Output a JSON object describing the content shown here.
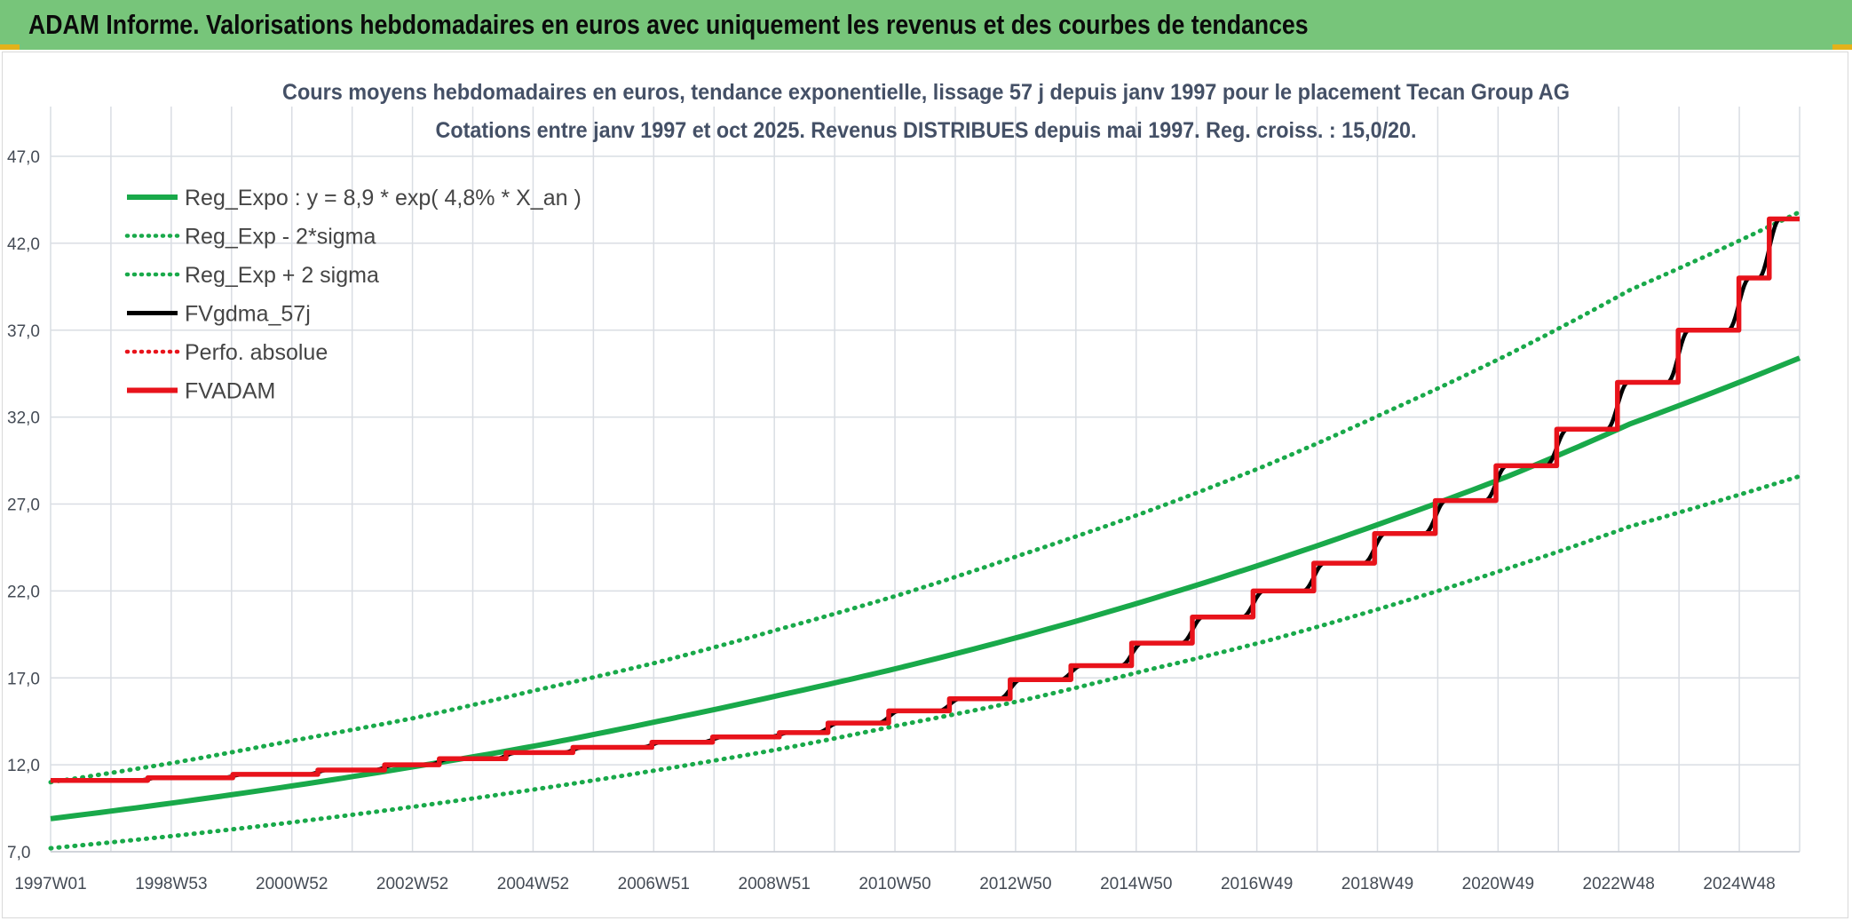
{
  "header": {
    "title": "ADAM Informe. Valorisations hebdomadaires en euros avec uniquement les revenus et des courbes de tendances"
  },
  "colors": {
    "header_bg": "#77c57a",
    "trend": "#19a94a",
    "fvgdma": "#000000",
    "fvadam": "#e8131b",
    "perfo": "#e8131b",
    "grid": "#d9dde3"
  },
  "chart_data": {
    "type": "line",
    "title_lines": [
      "Cours moyens hebdomadaires en euros, tendance exponentielle, lissage 57 j depuis janv 1997 pour le placement Tecan Group AG",
      "Cotations entre janv 1997 et oct 2025. Revenus DISTRIBUES depuis mai 1997. Reg. croiss. : 15,0/20."
    ],
    "x_ticks": [
      "1997W01",
      "1998W53",
      "2000W52",
      "2002W52",
      "2004W52",
      "2006W51",
      "2008W51",
      "2010W50",
      "2012W50",
      "2014W50",
      "2016W49",
      "2018W49",
      "2020W49",
      "2022W48",
      "2024W48"
    ],
    "x_range_years": [
      1997.0,
      2025.8
    ],
    "y_ticks": [
      "7,0",
      "12,0",
      "17,0",
      "22,0",
      "27,0",
      "32,0",
      "37,0",
      "42,0",
      "47,0"
    ],
    "ylim": [
      7,
      47
    ],
    "grid": true,
    "legend_position": "top-left",
    "legend": [
      {
        "label": "Reg_Expo : y = 8,9 * exp( 4,8% *  X_an )",
        "style": "solid-thick",
        "color": "#19a94a"
      },
      {
        "label": "Reg_Exp - 2*sigma",
        "style": "dotted",
        "color": "#19a94a"
      },
      {
        "label": "Reg_Exp + 2 sigma",
        "style": "dotted",
        "color": "#19a94a"
      },
      {
        "label": "FVgdma_57j",
        "style": "solid",
        "color": "#000000"
      },
      {
        "label": "Perfo. absolue",
        "style": "dotted",
        "color": "#e8131b"
      },
      {
        "label": "FVADAM",
        "style": "solid-thick",
        "color": "#e8131b"
      }
    ],
    "series": [
      {
        "name": "Reg_Expo : y = 8,9 * exp( 4,8% *  X_an )",
        "x": [
          1997.0,
          1999.0,
          2001.0,
          2003.0,
          2005.0,
          2007.0,
          2009.0,
          2011.0,
          2013.0,
          2015.0,
          2017.0,
          2019.0,
          2021.0,
          2023.0,
          2025.8
        ],
        "y": [
          8.9,
          9.8,
          10.8,
          11.9,
          13.1,
          14.5,
          16.0,
          17.6,
          19.4,
          21.4,
          23.6,
          26.0,
          28.6,
          31.6,
          35.4
        ]
      },
      {
        "name": "Reg_Exp - 2*sigma",
        "x": [
          1997.0,
          1999.0,
          2001.0,
          2003.0,
          2005.0,
          2007.0,
          2009.0,
          2011.0,
          2013.0,
          2015.0,
          2017.0,
          2019.0,
          2021.0,
          2023.0,
          2025.8
        ],
        "y": [
          7.2,
          7.9,
          8.7,
          9.6,
          10.6,
          11.7,
          12.9,
          14.3,
          15.7,
          17.4,
          19.1,
          21.1,
          23.3,
          25.7,
          28.6
        ]
      },
      {
        "name": "Reg_Exp + 2 sigma",
        "x": [
          1997.0,
          1999.0,
          2001.0,
          2003.0,
          2005.0,
          2007.0,
          2009.0,
          2011.0,
          2013.0,
          2015.0,
          2017.0,
          2019.0,
          2021.0,
          2023.0,
          2025.8
        ],
        "y": [
          11.0,
          12.1,
          13.4,
          14.7,
          16.3,
          17.9,
          19.8,
          21.8,
          24.1,
          26.5,
          29.2,
          32.3,
          35.6,
          39.3,
          43.8
        ]
      },
      {
        "name": "FVADAM",
        "steps": [
          {
            "x": 1997.0,
            "y": 11.1
          },
          {
            "x": 1998.6,
            "y": 11.25
          },
          {
            "x": 2000.0,
            "y": 11.45
          },
          {
            "x": 2001.4,
            "y": 11.7
          },
          {
            "x": 2002.5,
            "y": 12.0
          },
          {
            "x": 2003.4,
            "y": 12.35
          },
          {
            "x": 2004.5,
            "y": 12.7
          },
          {
            "x": 2005.6,
            "y": 13.0
          },
          {
            "x": 2006.9,
            "y": 13.3
          },
          {
            "x": 2007.9,
            "y": 13.6
          },
          {
            "x": 2009.0,
            "y": 13.85
          },
          {
            "x": 2009.8,
            "y": 14.4
          },
          {
            "x": 2010.8,
            "y": 15.1
          },
          {
            "x": 2011.8,
            "y": 15.8
          },
          {
            "x": 2012.8,
            "y": 16.9
          },
          {
            "x": 2013.8,
            "y": 17.7
          },
          {
            "x": 2014.8,
            "y": 19.0
          },
          {
            "x": 2015.8,
            "y": 20.5
          },
          {
            "x": 2016.8,
            "y": 22.0
          },
          {
            "x": 2017.8,
            "y": 23.6
          },
          {
            "x": 2018.8,
            "y": 25.3
          },
          {
            "x": 2019.8,
            "y": 27.2
          },
          {
            "x": 2020.8,
            "y": 29.2
          },
          {
            "x": 2021.8,
            "y": 31.3
          },
          {
            "x": 2022.8,
            "y": 34.0
          },
          {
            "x": 2023.8,
            "y": 37.0
          },
          {
            "x": 2024.8,
            "y": 40.0
          },
          {
            "x": 2025.3,
            "y": 43.4
          }
        ],
        "x_end": 2025.8
      },
      {
        "name": "FVgdma_57j",
        "smoothed_from": "FVADAM",
        "smoothing_days": 57
      },
      {
        "name": "Perfo. absolue",
        "follows": "FVADAM"
      }
    ]
  }
}
